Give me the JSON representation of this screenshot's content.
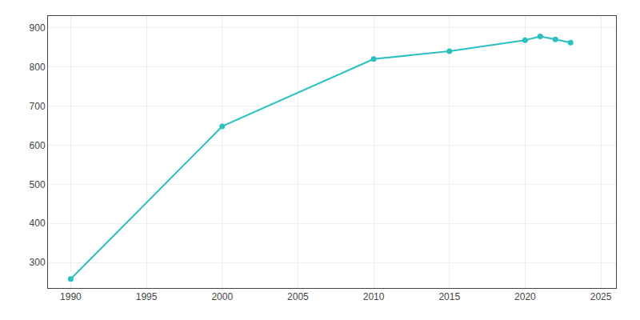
{
  "chart_data": {
    "type": "line",
    "x": [
      1990,
      2000,
      2010,
      2015,
      2020,
      2021,
      2022,
      2023
    ],
    "values": [
      258,
      648,
      820,
      840,
      868,
      878,
      870,
      862
    ],
    "color": "#2bbfbf",
    "marker": "circle",
    "xlim": [
      1988.5,
      2026
    ],
    "ylim": [
      235,
      930
    ],
    "xticks": [
      1990,
      1995,
      2000,
      2005,
      2010,
      2015,
      2020,
      2025
    ],
    "yticks": [
      300,
      400,
      500,
      600,
      700,
      800,
      900
    ],
    "grid": true
  }
}
